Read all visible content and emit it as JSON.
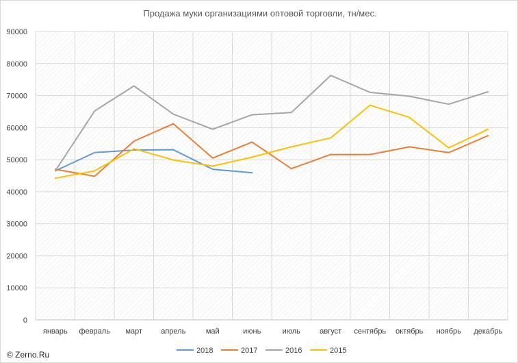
{
  "chart_data": {
    "type": "line",
    "title": "Продажа муки организациями оптовой торговли, тн/мес.",
    "categories": [
      "январь",
      "февраль",
      "март",
      "апрель",
      "май",
      "июнь",
      "июль",
      "август",
      "сентябрь",
      "октябрь",
      "ноябрь",
      "декабрь"
    ],
    "y_ticks": [
      "0",
      "10000",
      "20000",
      "30000",
      "40000",
      "50000",
      "60000",
      "70000",
      "80000",
      "90000"
    ],
    "ylim": [
      0,
      90000
    ],
    "grid": true,
    "legend_position": "bottom",
    "series": [
      {
        "name": "2018",
        "color": "#5B9BD5",
        "values": [
          46500,
          52200,
          53000,
          53100,
          47000,
          45900,
          null,
          null,
          null,
          null,
          null,
          null
        ]
      },
      {
        "name": "2017",
        "color": "#ED7D31",
        "values": [
          47000,
          44800,
          55800,
          61200,
          50500,
          55500,
          47200,
          51600,
          51600,
          54000,
          52200,
          57500
        ]
      },
      {
        "name": "2016",
        "color": "#A5A5A5",
        "values": [
          46500,
          65200,
          73000,
          64200,
          59500,
          64000,
          64700,
          76300,
          71000,
          69800,
          67300,
          71200
        ]
      },
      {
        "name": "2015",
        "color": "#FFC000",
        "values": [
          44200,
          46500,
          53400,
          49900,
          48000,
          50800,
          54000,
          56800,
          67000,
          63200,
          53700,
          59500
        ]
      }
    ]
  },
  "watermark": "© Zerno.Ru"
}
